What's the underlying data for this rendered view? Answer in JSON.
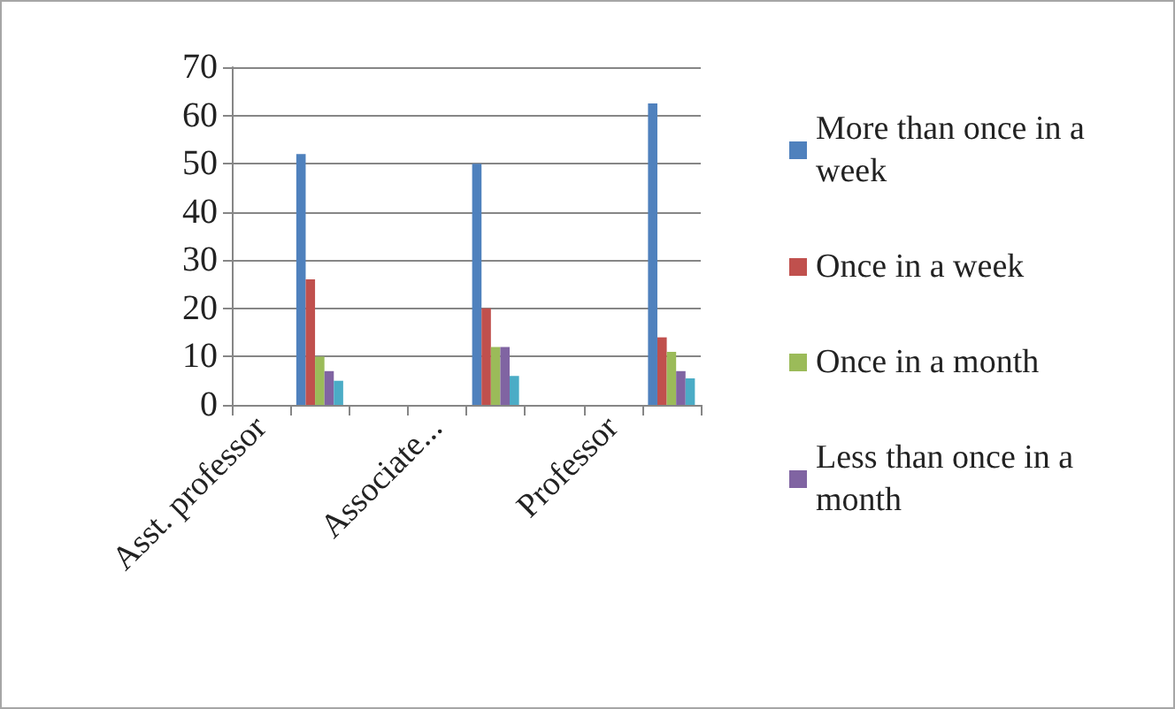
{
  "chart_data": {
    "type": "bar",
    "categories": [
      "Asst. professor",
      null,
      null,
      "Associate...",
      null,
      null,
      "Professor",
      null
    ],
    "series": [
      {
        "name": "More than once in a week",
        "color": "#4f81bd",
        "values": [
          null,
          52,
          null,
          null,
          50,
          null,
          null,
          62.5
        ]
      },
      {
        "name": "Once in a week",
        "color": "#c0504d",
        "values": [
          null,
          26,
          null,
          null,
          20,
          null,
          null,
          14
        ]
      },
      {
        "name": "Once in a month",
        "color": "#9bbb59",
        "values": [
          null,
          10,
          null,
          null,
          12,
          null,
          null,
          11
        ]
      },
      {
        "name": "Less than once in a month",
        "color": "#8064a2",
        "values": [
          null,
          7,
          null,
          null,
          12,
          null,
          null,
          7
        ]
      },
      {
        "color": "#4bacc6",
        "values": [
          null,
          5,
          null,
          null,
          6,
          null,
          null,
          5.5
        ]
      }
    ],
    "ylim": [
      0,
      70
    ],
    "yticks": [
      0,
      10,
      20,
      30,
      40,
      50,
      60,
      70
    ],
    "grid": "y",
    "legend": "right"
  }
}
